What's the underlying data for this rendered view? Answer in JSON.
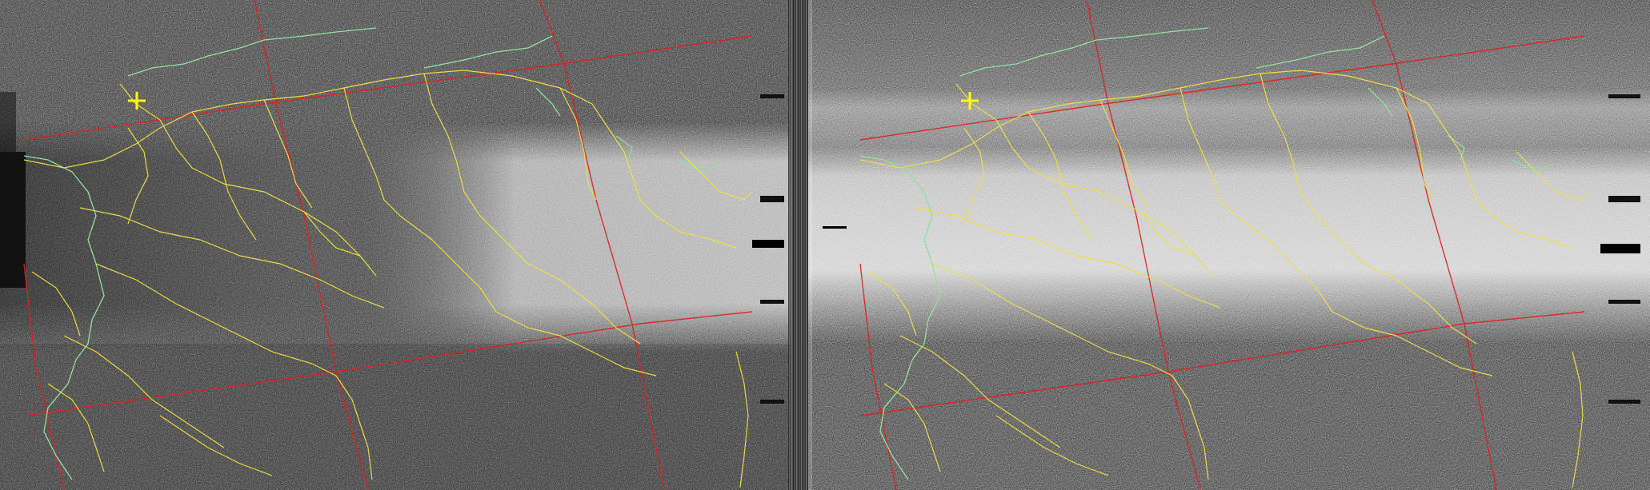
{
  "image": {
    "kind": "weather-satellite-apt-image",
    "panels": [
      {
        "name": "channel-a-visible"
      },
      {
        "name": "channel-b-infrared"
      }
    ],
    "overlay_colors": {
      "borders": "#f0e040",
      "coastlines": "#90e0a0",
      "lat_lon_grid": "#e02020",
      "station_marker": "#ffff00"
    },
    "markers": [
      {
        "name": "station-marker-left",
        "icon": "plus-icon"
      },
      {
        "name": "station-marker-right",
        "icon": "plus-icon"
      }
    ]
  }
}
